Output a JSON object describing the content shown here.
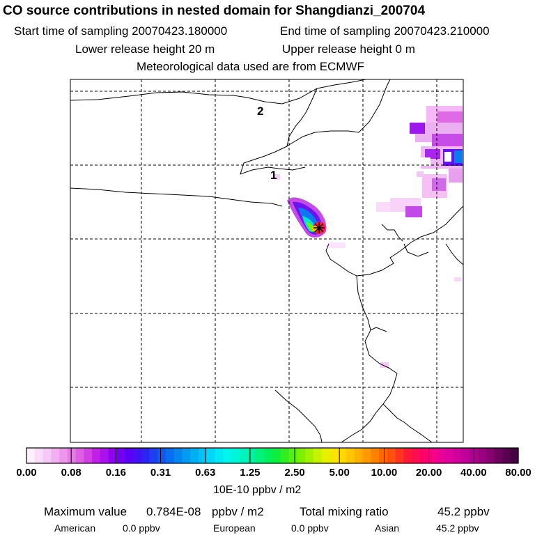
{
  "header": {
    "title": "CO  source contributions in nested domain for Shangdianzi_200704",
    "start_time": "Start time of sampling 20070423.180000",
    "end_time": "End time of sampling 20070423.210000",
    "lower_height": "Lower release height   20 m",
    "upper_height": "Upper release height    0 m",
    "meteo": "Meteorological data used are from ECMWF"
  },
  "map": {
    "region_labels": [
      "2",
      "1"
    ],
    "station_marker": "Shangdianzi receptor (black star)"
  },
  "colorbar": {
    "tick_labels": [
      "0.00",
      "0.08",
      "0.16",
      "0.31",
      "0.63",
      "1.25",
      "2.50",
      "5.00",
      "10.00",
      "20.00",
      "40.00",
      "80.00"
    ],
    "units": "10E-10 ppbv / m2",
    "colors": [
      "#fdf0fd",
      "#fadcfa",
      "#f6c8f6",
      "#f2b0f2",
      "#ee96ee",
      "#e67ae6",
      "#de60e2",
      "#d040e4",
      "#c020e8",
      "#ab10ee",
      "#9000f2",
      "#7400f4",
      "#5a00f4",
      "#4410f4",
      "#2c24f2",
      "#1c40f0",
      "#1058f0",
      "#0870f0",
      "#0486f0",
      "#009cf2",
      "#00b0f4",
      "#00c4f6",
      "#00d8f6",
      "#00eaf4",
      "#00f6ec",
      "#00f6d6",
      "#00f4bc",
      "#00f29c",
      "#00f27a",
      "#00f05a",
      "#10ee3a",
      "#30ee20",
      "#56f010",
      "#7cf000",
      "#a2f200",
      "#c6f200",
      "#e6f000",
      "#f8e600",
      "#ffd800",
      "#ffc600",
      "#ffb000",
      "#ff9a00",
      "#ff8200",
      "#ff6a00",
      "#ff5010",
      "#ff3420",
      "#ff1838",
      "#ff0c52",
      "#ff006c",
      "#f80084",
      "#ec0094",
      "#e0009e",
      "#d0009e",
      "#c00098",
      "#ae008e",
      "#9a0080",
      "#860070",
      "#700060",
      "#5a0050",
      "#440040"
    ]
  },
  "stats": {
    "max_label": "Maximum value",
    "max_value": "0.784E-08",
    "max_unit": "ppbv / m2",
    "total_label": "Total mixing ratio",
    "total_value": "45.2 ppbv",
    "sources": [
      {
        "name": "American",
        "value": "0.0 ppbv"
      },
      {
        "name": "European",
        "value": "0.0 ppbv"
      },
      {
        "name": "Asian",
        "value": "45.2 ppbv"
      }
    ]
  }
}
